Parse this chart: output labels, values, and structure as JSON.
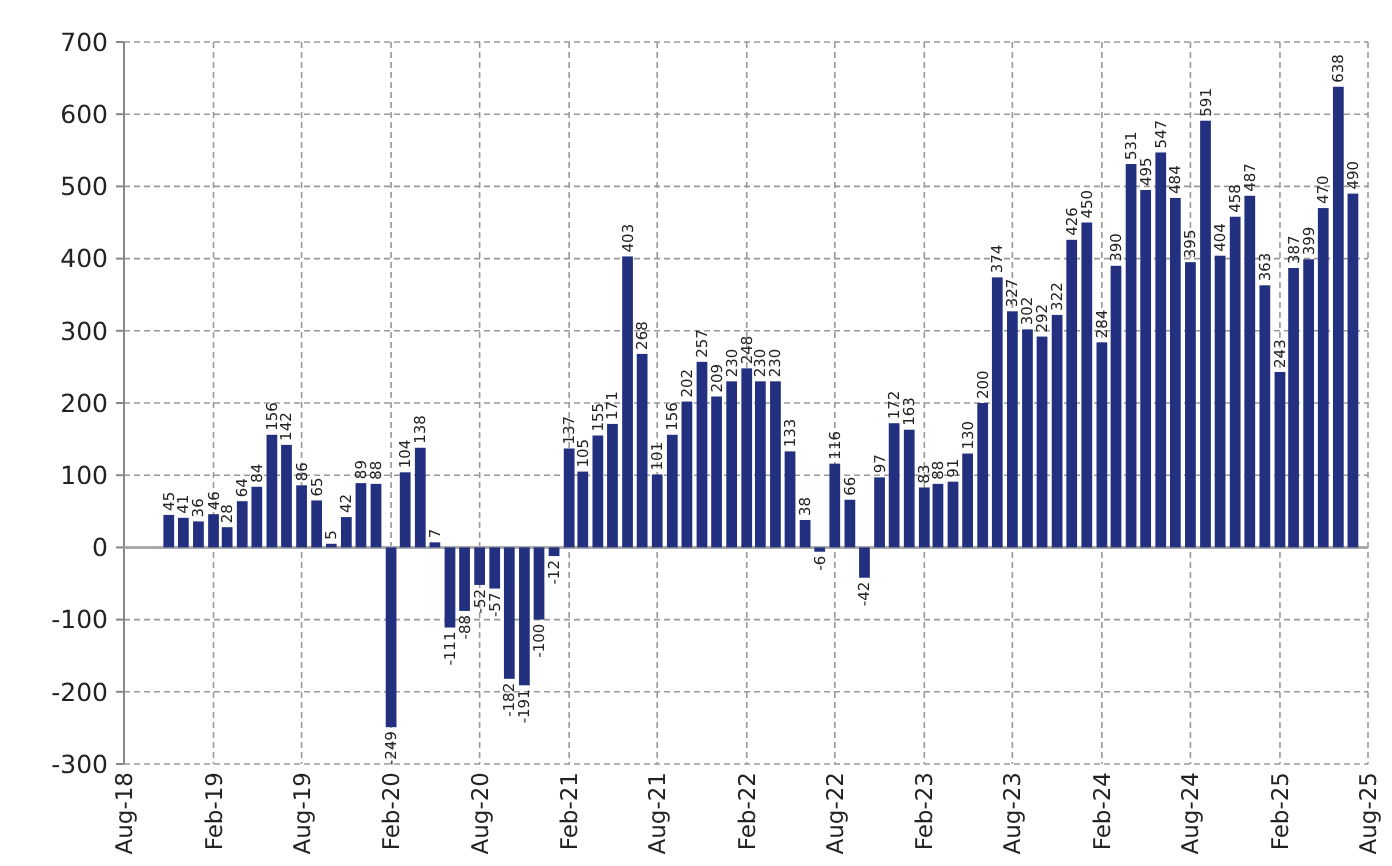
{
  "chart_data": {
    "type": "bar",
    "x": [
      "2018-11",
      "2018-12",
      "2019-01",
      "2019-02",
      "2019-03",
      "2019-04",
      "2019-05",
      "2019-06",
      "2019-07",
      "2019-08",
      "2019-09",
      "2019-10",
      "2019-11",
      "2019-12",
      "2020-01",
      "2020-02",
      "2020-03",
      "2020-04",
      "2020-05",
      "2020-06",
      "2020-07",
      "2020-08",
      "2020-09",
      "2020-10",
      "2020-11",
      "2020-12",
      "2021-01",
      "2021-02",
      "2021-03",
      "2021-04",
      "2021-05",
      "2021-06",
      "2021-07",
      "2021-08",
      "2021-09",
      "2021-10",
      "2021-11",
      "2021-12",
      "2022-01",
      "2022-02",
      "2022-03",
      "2022-04",
      "2022-05",
      "2022-06",
      "2022-07",
      "2022-08",
      "2022-09",
      "2022-10",
      "2022-11",
      "2022-12",
      "2023-01",
      "2023-02",
      "2023-03",
      "2023-04",
      "2023-05",
      "2023-06",
      "2023-07",
      "2023-08",
      "2023-09",
      "2023-10",
      "2023-11",
      "2023-12",
      "2024-01",
      "2024-02",
      "2024-03",
      "2024-04",
      "2024-05",
      "2024-06",
      "2024-07",
      "2024-08",
      "2024-09",
      "2024-10",
      "2024-11",
      "2024-12",
      "2025-01",
      "2025-02",
      "2025-03",
      "2025-04",
      "2025-05",
      "2025-06",
      "2025-07"
    ],
    "values": [
      45,
      41,
      36,
      46,
      28,
      64,
      84,
      156,
      142,
      86,
      65,
      5,
      42,
      89,
      88,
      -249,
      104,
      138,
      7,
      -111,
      -88,
      -52,
      -57,
      -182,
      -191,
      -100,
      -12,
      137,
      105,
      155,
      171,
      403,
      268,
      101,
      156,
      202,
      257,
      209,
      230,
      248,
      230,
      230,
      133,
      38,
      -6,
      116,
      66,
      -42,
      97,
      172,
      163,
      83,
      88,
      91,
      130,
      200,
      374,
      327,
      302,
      292,
      322,
      426,
      450,
      284,
      390,
      531,
      495,
      547,
      484,
      395,
      591,
      404,
      458,
      487,
      363,
      243,
      387,
      399,
      470,
      638,
      490
    ],
    "color": "#22307f",
    "data_labels": true,
    "xlim": [
      "2018-08",
      "2025-08"
    ],
    "xticks": [
      {
        "value": "2018-08",
        "label": "Aug-18"
      },
      {
        "value": "2019-02",
        "label": "Feb-19"
      },
      {
        "value": "2019-08",
        "label": "Aug-19"
      },
      {
        "value": "2020-02",
        "label": "Feb-20"
      },
      {
        "value": "2020-08",
        "label": "Aug-20"
      },
      {
        "value": "2021-02",
        "label": "Feb-21"
      },
      {
        "value": "2021-08",
        "label": "Aug-21"
      },
      {
        "value": "2022-02",
        "label": "Feb-22"
      },
      {
        "value": "2022-08",
        "label": "Aug-22"
      },
      {
        "value": "2023-02",
        "label": "Feb-23"
      },
      {
        "value": "2023-08",
        "label": "Aug-23"
      },
      {
        "value": "2024-02",
        "label": "Feb-24"
      },
      {
        "value": "2024-08",
        "label": "Aug-24"
      },
      {
        "value": "2025-02",
        "label": "Feb-25"
      },
      {
        "value": "2025-08",
        "label": "Aug-25"
      }
    ],
    "ylim": [
      -300,
      700
    ],
    "yticks": [
      -300,
      -200,
      -100,
      0,
      100,
      200,
      300,
      400,
      500,
      600,
      700
    ],
    "grid": true
  }
}
